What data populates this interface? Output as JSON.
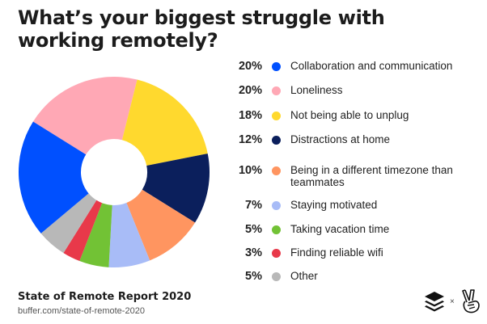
{
  "title": "What’s your biggest struggle with working remotely?",
  "footer": {
    "report_title": "State of Remote Report 2020",
    "url": "buffer.com/state-of-remote-2020",
    "logo_separator": "×"
  },
  "chart_data": {
    "type": "pie",
    "variant": "donut",
    "title": "What’s your biggest struggle with working remotely?",
    "legend_position": "right",
    "categories": [
      "Collaboration and communication",
      "Loneliness",
      "Not being able to unplug",
      "Distractions at home",
      "Being in a different timezone than teammates",
      "Staying motivated",
      "Taking vacation time",
      "Finding reliable wifi",
      "Other"
    ],
    "values": [
      20,
      20,
      18,
      12,
      10,
      7,
      5,
      3,
      5
    ],
    "labels": [
      "20%",
      "20%",
      "18%",
      "12%",
      "10%",
      "7%",
      "5%",
      "3%",
      "5%"
    ],
    "colors": [
      "#0050ff",
      "#ffa8b5",
      "#ffd92e",
      "#0b1f5c",
      "#ff9560",
      "#a8bcf7",
      "#72c235",
      "#e8394a",
      "#b8b8b8"
    ],
    "unit": "%"
  },
  "legend": [
    {
      "pct": "20%",
      "label": "Collaboration and communication",
      "color": "#0050ff"
    },
    {
      "pct": "20%",
      "label": "Loneliness",
      "color": "#ffa8b5"
    },
    {
      "pct": "18%",
      "label": "Not being able to unplug",
      "color": "#ffd92e"
    },
    {
      "pct": "12%",
      "label": "Distractions at home",
      "color": "#0b1f5c"
    },
    {
      "pct": "10%",
      "label": "Being in a different timezone than teammates",
      "color": "#ff9560"
    },
    {
      "pct": "7%",
      "label": "Staying motivated",
      "color": "#a8bcf7"
    },
    {
      "pct": "5%",
      "label": "Taking vacation time",
      "color": "#72c235"
    },
    {
      "pct": "3%",
      "label": "Finding reliable wifi",
      "color": "#e8394a"
    },
    {
      "pct": "5%",
      "label": "Other",
      "color": "#b8b8b8"
    }
  ]
}
